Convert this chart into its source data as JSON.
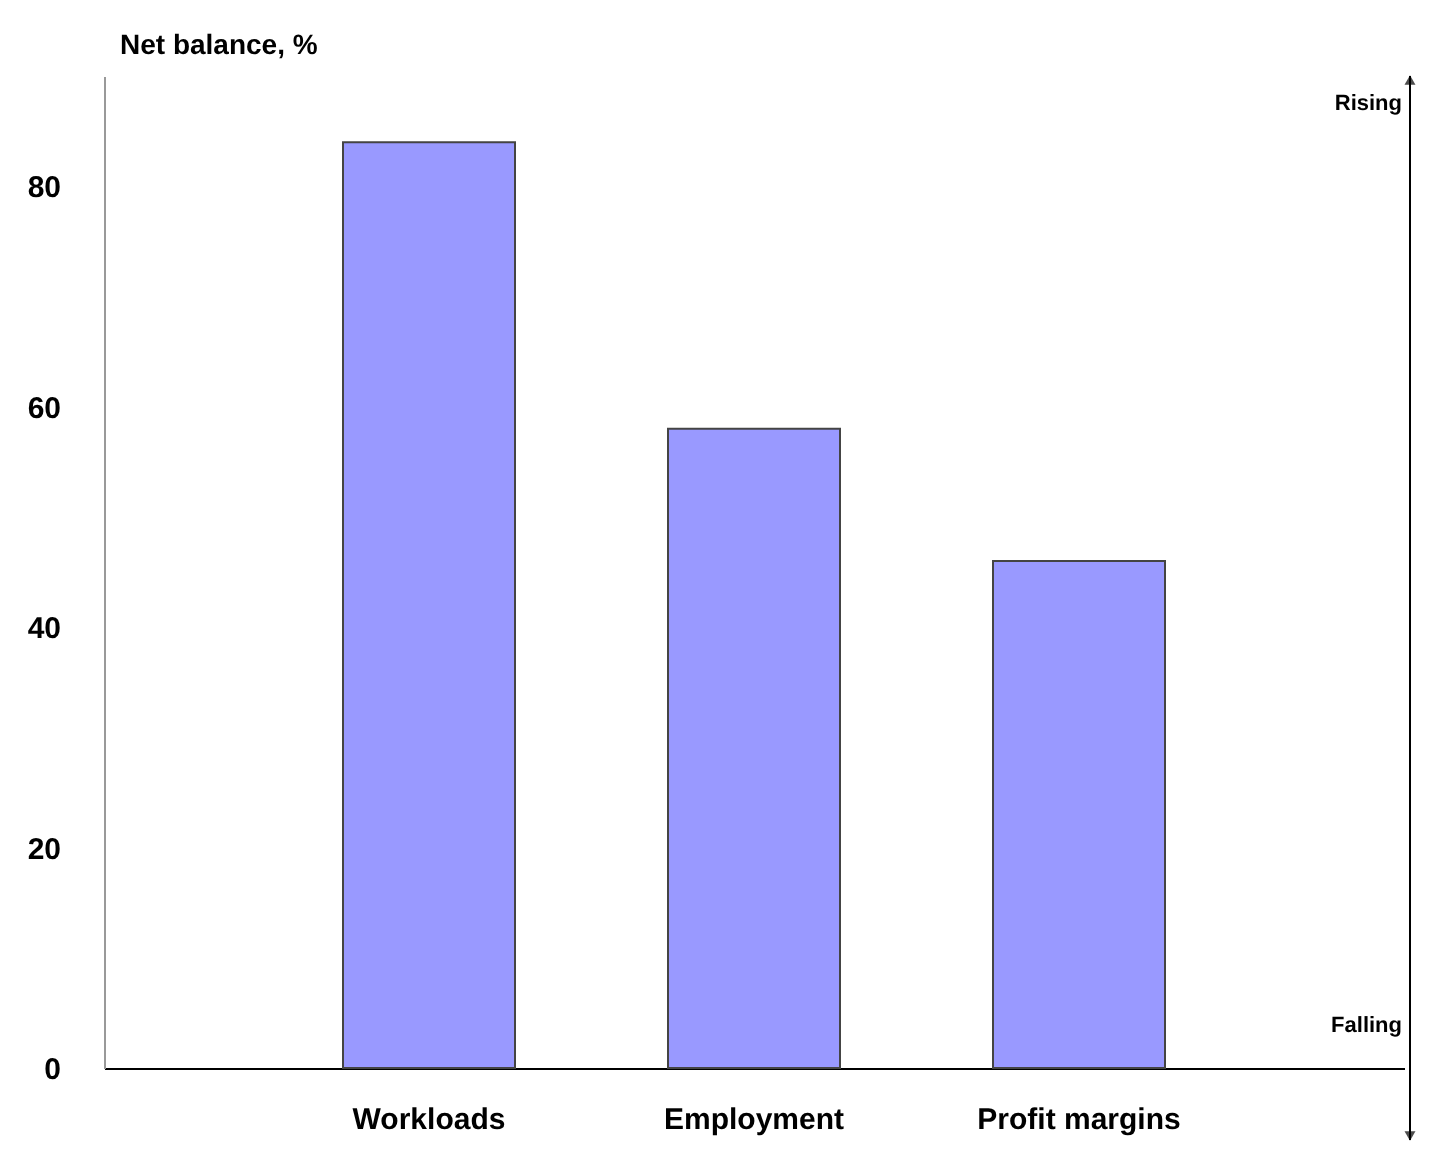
{
  "chart_data": {
    "type": "bar",
    "ylabel": "Net balance, %",
    "categories": [
      "Workloads",
      "Employment",
      "Profit margins"
    ],
    "values": [
      84,
      58,
      46
    ],
    "color": "#9999ff",
    "ylim": [
      0,
      90
    ],
    "yticks": [
      0,
      20,
      40,
      60,
      80
    ],
    "grid": false,
    "annotations": [
      "Rising",
      "Falling"
    ]
  }
}
